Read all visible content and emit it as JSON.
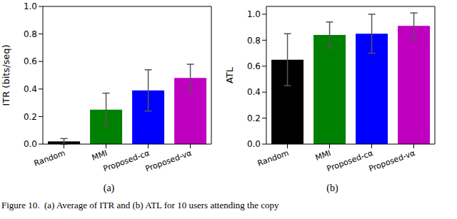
{
  "chart_data": [
    {
      "type": "bar",
      "subtitle": "(a)",
      "y_label": "ITR (bits/seq)",
      "categories": [
        "Random",
        "MMI",
        "Proposed-cα",
        "Proposed-vα"
      ],
      "values": [
        0.02,
        0.25,
        0.39,
        0.48
      ],
      "errors": [
        0.02,
        0.12,
        0.15,
        0.1
      ],
      "colors": [
        "#000000",
        "#008000",
        "#0000ff",
        "#bf00bf"
      ],
      "ylim": [
        0,
        1.0
      ],
      "yticks": [
        {
          "value": 0,
          "label": "0.0"
        },
        0.2,
        0.4,
        0.6,
        0.8,
        {
          "value": 1.0,
          "label": "1.0"
        }
      ]
    },
    {
      "type": "bar",
      "subtitle": "(b)",
      "y_label": "ATL",
      "categories": [
        "Random",
        "MMI",
        "Proposed-cα",
        "Proposed-vα"
      ],
      "values": [
        0.65,
        0.84,
        0.85,
        0.91
      ],
      "errors": [
        0.2,
        0.1,
        0.15,
        0.1
      ],
      "colors": [
        "#000000",
        "#008000",
        "#0000ff",
        "#bf00bf"
      ],
      "ylim": [
        0,
        1.06
      ],
      "yticks": [
        {
          "value": 0,
          "label": "0.0"
        },
        0.2,
        0.4,
        0.6,
        0.8,
        {
          "value": 1.0,
          "label": "1.0"
        }
      ]
    }
  ],
  "caption": "Figure 10.  (a) Average of ITR and (b) ATL for 10 users attending the copy"
}
